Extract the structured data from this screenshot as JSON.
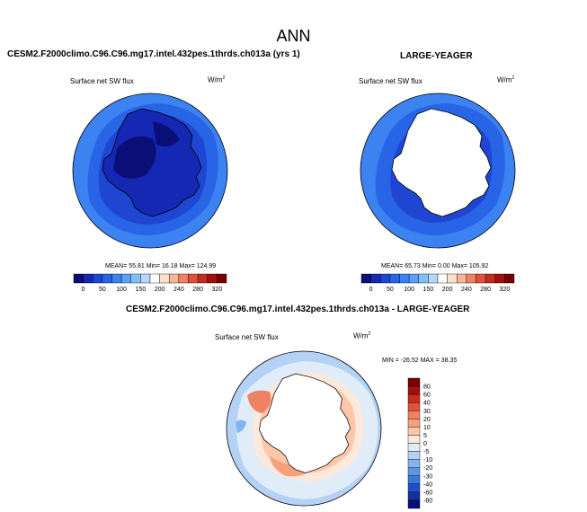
{
  "page": {
    "title": "ANN"
  },
  "panels": {
    "left": {
      "case_title": "CESM2.F2000climo.C96.C96.mg17.intel.432pes.1thrds.ch013a (yrs 1)",
      "variable": "Surface net SW flux",
      "units_base": "W/m",
      "units_exp": "2",
      "stats": "MEAN=  55.81  Min=  16.18  Max= 124.99"
    },
    "right": {
      "case_title": "LARGE-YEAGER",
      "variable": "Surface net SW flux",
      "units_base": "W/m",
      "units_exp": "2",
      "stats": "MEAN=  65.73  Min=   0.00  Max= 105.92"
    },
    "diff": {
      "case_title": "CESM2.F2000climo.C96.C96.mg17.intel.432pes.1thrds.ch013a - LARGE-YEAGER",
      "variable": "Surface net SW flux",
      "units_base": "W/m",
      "units_exp": "2",
      "stats": "MIN = -26.52 MAX =  38.35"
    }
  },
  "chart_data": [
    {
      "type": "heatmap",
      "projection": "south-polar-stereographic",
      "title": "CESM2.F2000climo.C96.C96.mg17.intel.432pes.1thrds.ch013a (yrs 1)",
      "variable": "Surface net SW flux",
      "units": "W/m2",
      "mean": 55.81,
      "min": 16.18,
      "max": 124.99,
      "colorbar": {
        "orientation": "horizontal",
        "tick_labels": [
          "0",
          "50",
          "100",
          "150",
          "200",
          "240",
          "280",
          "320"
        ],
        "levels": [
          0,
          25,
          50,
          75,
          100,
          125,
          150,
          175,
          200,
          220,
          240,
          260,
          280,
          300,
          320
        ],
        "colors": [
          "#0a0f78",
          "#1428b4",
          "#1e46d2",
          "#2864e6",
          "#3c82f0",
          "#5aa0f5",
          "#82bef8",
          "#b4d8fa",
          "#ffffff",
          "#fde0cc",
          "#f8b496",
          "#f08264",
          "#e0503c",
          "#c42c20",
          "#a01010",
          "#780000"
        ]
      }
    },
    {
      "type": "heatmap",
      "projection": "south-polar-stereographic",
      "title": "LARGE-YEAGER",
      "variable": "Surface net SW flux",
      "units": "W/m2",
      "mean": 65.73,
      "min": 0.0,
      "max": 105.92,
      "colorbar": {
        "orientation": "horizontal",
        "tick_labels": [
          "0",
          "50",
          "100",
          "150",
          "200",
          "240",
          "280",
          "320"
        ],
        "levels": [
          0,
          25,
          50,
          75,
          100,
          125,
          150,
          175,
          200,
          220,
          240,
          260,
          280,
          300,
          320
        ],
        "colors": [
          "#0a0f78",
          "#1428b4",
          "#1e46d2",
          "#2864e6",
          "#3c82f0",
          "#5aa0f5",
          "#82bef8",
          "#b4d8fa",
          "#ffffff",
          "#fde0cc",
          "#f8b496",
          "#f08264",
          "#e0503c",
          "#c42c20",
          "#a01010",
          "#780000"
        ]
      }
    },
    {
      "type": "heatmap",
      "projection": "south-polar-stereographic",
      "title": "CESM2.F2000climo.C96.C96.mg17.intel.432pes.1thrds.ch013a - LARGE-YEAGER",
      "variable": "Surface net SW flux",
      "units": "W/m2",
      "min": -26.52,
      "max": 38.35,
      "colorbar": {
        "orientation": "vertical",
        "tick_labels": [
          "80",
          "60",
          "40",
          "30",
          "20",
          "10",
          "5",
          "0",
          "-5",
          "-10",
          "-20",
          "-30",
          "-40",
          "-60",
          "-80"
        ],
        "colors": [
          "#780000",
          "#a01010",
          "#c42c20",
          "#e0503c",
          "#f08264",
          "#f8a07c",
          "#fdc8aa",
          "#fde8dc",
          "#e0ecf8",
          "#b4d2f5",
          "#82b4f0",
          "#5a96e6",
          "#3c78dc",
          "#2050c8",
          "#1430a0",
          "#0a0f78"
        ]
      }
    }
  ]
}
